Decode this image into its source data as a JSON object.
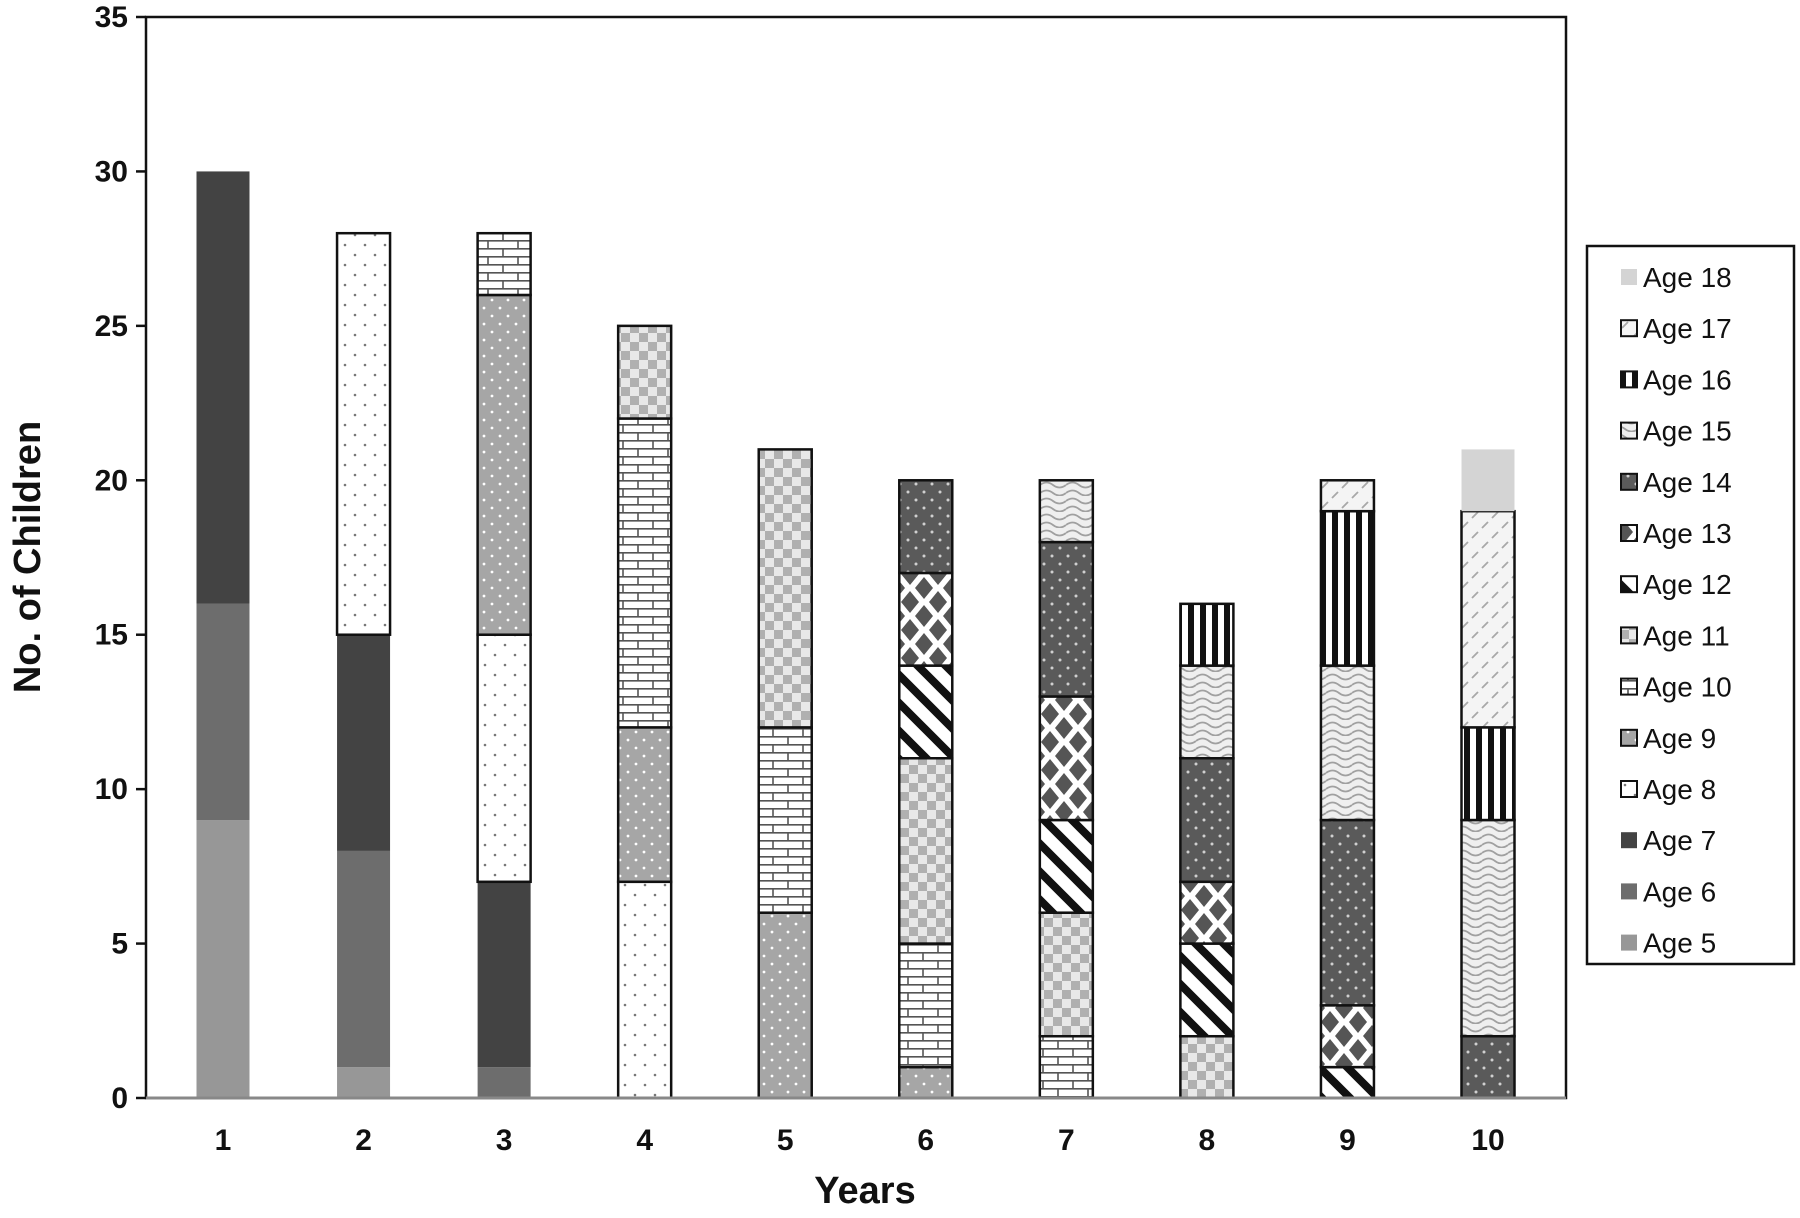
{
  "chart_data": {
    "type": "bar",
    "stacked": true,
    "title": "",
    "xlabel": "Years",
    "ylabel": "No. of Children",
    "ylim": [
      0,
      35
    ],
    "yticks": [
      0,
      5,
      10,
      15,
      20,
      25,
      30,
      35
    ],
    "grid": false,
    "legend_position": "right",
    "categories": [
      "1",
      "2",
      "3",
      "4",
      "5",
      "6",
      "7",
      "8",
      "9",
      "10"
    ],
    "series": [
      {
        "name": "Age 5",
        "pattern": "solid-gray",
        "values": [
          9,
          1,
          0,
          0,
          0,
          0,
          0,
          0,
          0,
          0
        ]
      },
      {
        "name": "Age 6",
        "pattern": "solid-midgray",
        "values": [
          7,
          7,
          1,
          0,
          0,
          0,
          0,
          0,
          0,
          0
        ]
      },
      {
        "name": "Age 7",
        "pattern": "solid-dark",
        "values": [
          14,
          7,
          6,
          0,
          0,
          0,
          0,
          0,
          0,
          0
        ]
      },
      {
        "name": "Age 8",
        "pattern": "dots-white",
        "values": [
          0,
          13,
          8,
          7,
          0,
          0,
          0,
          0,
          0,
          0
        ]
      },
      {
        "name": "Age 9",
        "pattern": "dots-gray",
        "values": [
          0,
          0,
          11,
          5,
          6,
          1,
          0,
          0,
          0,
          0
        ]
      },
      {
        "name": "Age 10",
        "pattern": "brick",
        "values": [
          0,
          0,
          2,
          10,
          6,
          4,
          2,
          0,
          0,
          0
        ]
      },
      {
        "name": "Age 11",
        "pattern": "checker",
        "values": [
          0,
          0,
          0,
          3,
          9,
          6,
          4,
          2,
          0,
          0
        ]
      },
      {
        "name": "Age 12",
        "pattern": "diagonal",
        "values": [
          0,
          0,
          0,
          0,
          0,
          3,
          3,
          3,
          1,
          0
        ]
      },
      {
        "name": "Age 13",
        "pattern": "diamond",
        "values": [
          0,
          0,
          0,
          0,
          0,
          3,
          4,
          2,
          2,
          0
        ]
      },
      {
        "name": "Age 14",
        "pattern": "dots-dark",
        "values": [
          0,
          0,
          0,
          0,
          0,
          3,
          5,
          4,
          6,
          2
        ]
      },
      {
        "name": "Age 15",
        "pattern": "wave",
        "values": [
          0,
          0,
          0,
          0,
          0,
          0,
          2,
          3,
          5,
          7
        ]
      },
      {
        "name": "Age 16",
        "pattern": "vertical-stripe",
        "values": [
          0,
          0,
          0,
          0,
          0,
          0,
          0,
          2,
          5,
          3
        ]
      },
      {
        "name": "Age 17",
        "pattern": "dash",
        "values": [
          0,
          0,
          0,
          0,
          0,
          0,
          0,
          0,
          1,
          7
        ]
      },
      {
        "name": "Age 18",
        "pattern": "solid-light",
        "values": [
          0,
          0,
          0,
          0,
          0,
          0,
          0,
          0,
          0,
          2
        ]
      }
    ],
    "legend_order": [
      "Age 18",
      "Age 17",
      "Age 16",
      "Age 15",
      "Age 14",
      "Age 13",
      "Age 12",
      "Age 11",
      "Age 10",
      "Age 9",
      "Age 8",
      "Age 7",
      "Age 6",
      "Age 5"
    ]
  }
}
